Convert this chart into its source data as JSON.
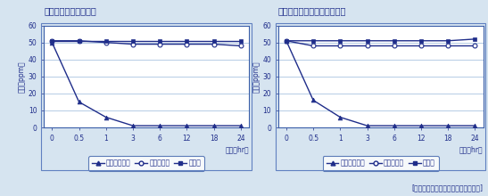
{
  "title1": "アンモニアの試験結果",
  "title2": "トリメチルアミンの試験結果",
  "footnote": "[財団法人日本食品分析センター調べ]",
  "xlabel": "時間（hr）",
  "ylabel": "濃度（ppm）",
  "x_positions": [
    0,
    1,
    2,
    3,
    4,
    5,
    6,
    7
  ],
  "x_tick_labels": [
    "0",
    "0.5",
    "1",
    "3",
    "6",
    "12",
    "18",
    "24"
  ],
  "x_data": [
    0,
    1,
    2,
    3,
    4,
    5,
    6,
    7
  ],
  "ylim": [
    0,
    60
  ],
  "yticks": [
    0,
    10,
    20,
    30,
    40,
    50,
    60
  ],
  "chart1": {
    "bitatto": [
      50,
      15,
      6,
      1,
      1,
      1,
      1,
      1
    ],
    "control": [
      51,
      51,
      50,
      49,
      49,
      49,
      49,
      48
    ],
    "blank": [
      51,
      51,
      51,
      51,
      51,
      51,
      51,
      51
    ]
  },
  "chart2": {
    "bitatto": [
      51,
      16,
      6,
      1,
      1,
      1,
      1,
      1
    ],
    "control": [
      51,
      48,
      48,
      48,
      48,
      48,
      48,
      48
    ],
    "blank": [
      51,
      51,
      51,
      51,
      51,
      51,
      51,
      52
    ]
  },
  "color_main": "#1f2d8a",
  "grid_color": "#aac4e0",
  "plot_bg": "#ffffff",
  "border_color": "#3a5ea8",
  "title_color": "#1f2d8a",
  "outer_border_color": "#6080c0",
  "fig_bg": "#d6e4f0",
  "legend_labels": [
    "ビタットくん",
    "対照（水）",
    "空試験"
  ],
  "footnote_color": "#1f2d8a"
}
